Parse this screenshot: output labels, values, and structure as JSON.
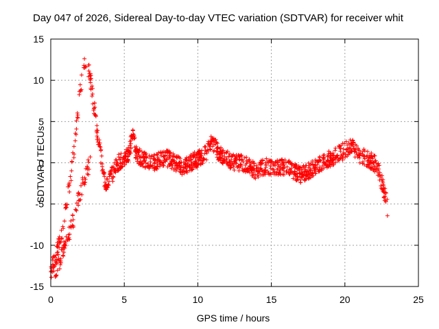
{
  "chart_data": {
    "type": "scatter",
    "title": "Day 047 of 2026, Sidereal Day-to-day VTEC variation (SDTVAR) for receiver whit",
    "xlabel": "GPS time / hours",
    "ylabel": "SDTVAR / TECUs",
    "xlim": [
      0,
      25
    ],
    "ylim": [
      -15,
      15
    ],
    "xticks": [
      0,
      5,
      10,
      15,
      20,
      25
    ],
    "yticks": [
      -15,
      -10,
      -5,
      0,
      5,
      10,
      15
    ],
    "grid": true,
    "marker": "+",
    "color": "#ff0000",
    "series": [
      {
        "name": "SDTVAR",
        "trend": [
          [
            0.0,
            -13.5
          ],
          [
            0.2,
            -12.0
          ],
          [
            0.4,
            -11.0
          ],
          [
            0.6,
            -9.5
          ],
          [
            0.8,
            -8.0
          ],
          [
            1.0,
            -6.0
          ],
          [
            1.2,
            -3.5
          ],
          [
            1.4,
            -1.0
          ],
          [
            1.6,
            2.0
          ],
          [
            1.8,
            5.0
          ],
          [
            2.0,
            8.5
          ],
          [
            2.2,
            11.5
          ],
          [
            2.4,
            12.5
          ],
          [
            2.6,
            11.0
          ],
          [
            2.8,
            9.0
          ],
          [
            3.0,
            6.0
          ],
          [
            3.2,
            3.0
          ],
          [
            3.4,
            1.0
          ],
          [
            3.6,
            -1.5
          ],
          [
            3.8,
            -3.0
          ],
          [
            4.0,
            -2.0
          ],
          [
            4.3,
            -1.0
          ],
          [
            4.6,
            0.0
          ],
          [
            5.0,
            0.5
          ],
          [
            5.3,
            1.0
          ],
          [
            5.6,
            3.5
          ],
          [
            5.8,
            1.0
          ],
          [
            6.2,
            0.5
          ],
          [
            6.6,
            0.0
          ],
          [
            7.0,
            0.0
          ],
          [
            7.5,
            0.5
          ],
          [
            8.0,
            0.5
          ],
          [
            8.5,
            0.0
          ],
          [
            9.0,
            -0.5
          ],
          [
            9.5,
            0.0
          ],
          [
            10.0,
            0.5
          ],
          [
            10.5,
            1.0
          ],
          [
            11.0,
            2.5
          ],
          [
            11.5,
            1.0
          ],
          [
            12.0,
            0.5
          ],
          [
            12.5,
            0.0
          ],
          [
            13.0,
            0.0
          ],
          [
            13.5,
            -0.5
          ],
          [
            14.0,
            -1.0
          ],
          [
            14.5,
            -0.5
          ],
          [
            15.0,
            -0.5
          ],
          [
            15.5,
            -0.5
          ],
          [
            16.0,
            -0.5
          ],
          [
            16.5,
            -1.0
          ],
          [
            17.0,
            -1.5
          ],
          [
            17.5,
            -1.0
          ],
          [
            18.0,
            -0.5
          ],
          [
            18.5,
            0.0
          ],
          [
            19.0,
            0.5
          ],
          [
            19.5,
            1.0
          ],
          [
            20.0,
            1.5
          ],
          [
            20.5,
            2.0
          ],
          [
            21.0,
            1.0
          ],
          [
            21.5,
            0.5
          ],
          [
            22.0,
            0.0
          ],
          [
            22.3,
            -1.0
          ],
          [
            22.6,
            -3.0
          ],
          [
            22.9,
            -5.5
          ]
        ],
        "lower_branch": [
          [
            0.0,
            -14.0
          ],
          [
            0.3,
            -13.0
          ],
          [
            0.6,
            -12.0
          ],
          [
            0.9,
            -10.5
          ],
          [
            1.2,
            -9.0
          ],
          [
            1.5,
            -7.0
          ],
          [
            1.8,
            -5.0
          ],
          [
            2.1,
            -3.0
          ],
          [
            2.4,
            -1.0
          ],
          [
            2.7,
            0.0
          ]
        ],
        "spread": 1.0,
        "point_count": 1400
      }
    ]
  }
}
